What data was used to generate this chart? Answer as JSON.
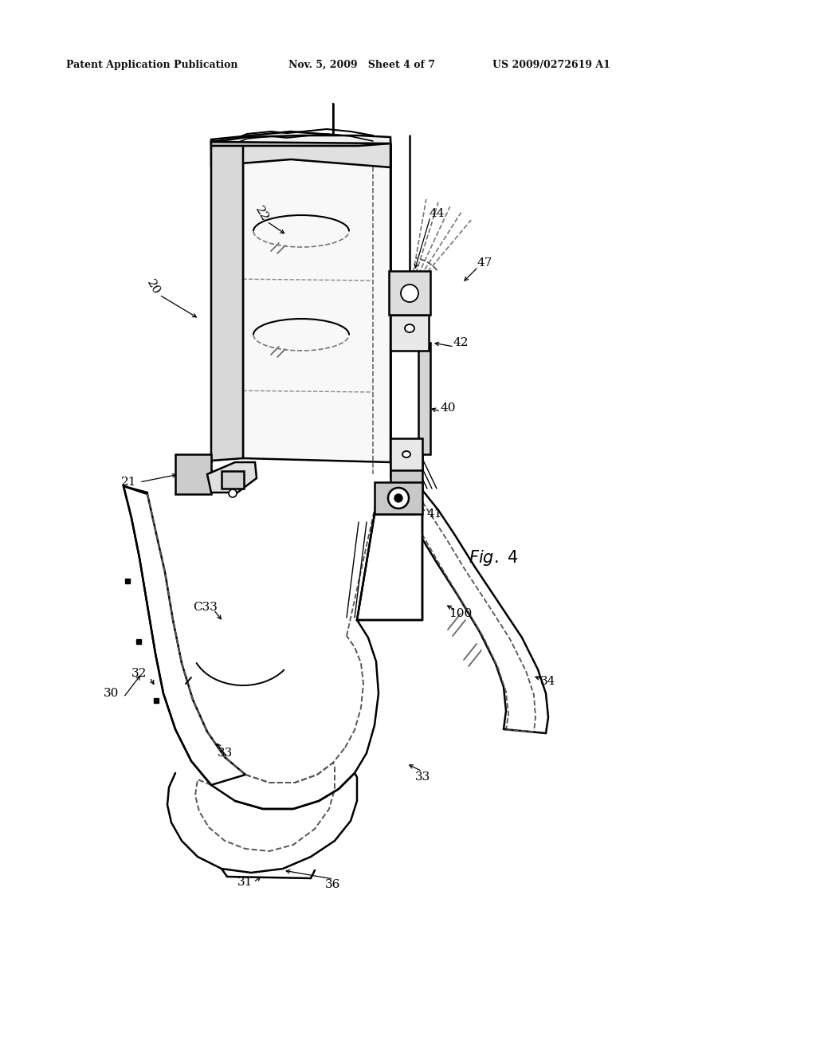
{
  "bg_color": "#ffffff",
  "header_left": "Patent Application Publication",
  "header_mid": "Nov. 5, 2009   Sheet 4 of 7",
  "header_right": "US 2009/0272619 A1",
  "fig_label": "Fig. 4",
  "line_color": "#000000",
  "line_width": 1.8
}
